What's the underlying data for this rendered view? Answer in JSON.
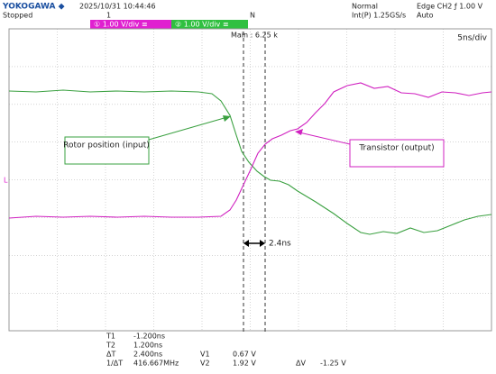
{
  "header": {
    "brand": "YOKOGAWA ◆",
    "status": "Stopped",
    "datetime": "2025/10/31 10:44:46",
    "mode": "Normal",
    "trigger": "Edge CH2 ƒ 1.00 V",
    "sampling": "Int(P) 1.25GS/s",
    "trigger_mode": "Auto"
  },
  "channels": [
    {
      "label": "① 1.00 V/div ≡"
    },
    {
      "label": "② 1.00 V/div ≡"
    }
  ],
  "markers": {
    "ch1": "1",
    "trigger": "N"
  },
  "screen": {
    "zoom": "Main : 6.25 k",
    "timebase": "5ns/div",
    "level_marker": "L"
  },
  "annotations": [
    {
      "text": "Rotor position (input)"
    },
    {
      "text": "Transistor (output)"
    },
    {
      "text": "2.4ns"
    }
  ],
  "measurements": {
    "rows": [
      [
        "T1",
        "-1.200ns"
      ],
      [
        "T2",
        "1.200ns"
      ],
      [
        "ΔT",
        "2.400ns"
      ],
      [
        "1/ΔT",
        "416.667MHz"
      ]
    ],
    "v": [
      [
        "V1",
        "0.67 V"
      ],
      [
        "V2",
        "1.92 V"
      ]
    ],
    "dv": [
      "ΔV",
      "-1.25 V"
    ]
  }
}
